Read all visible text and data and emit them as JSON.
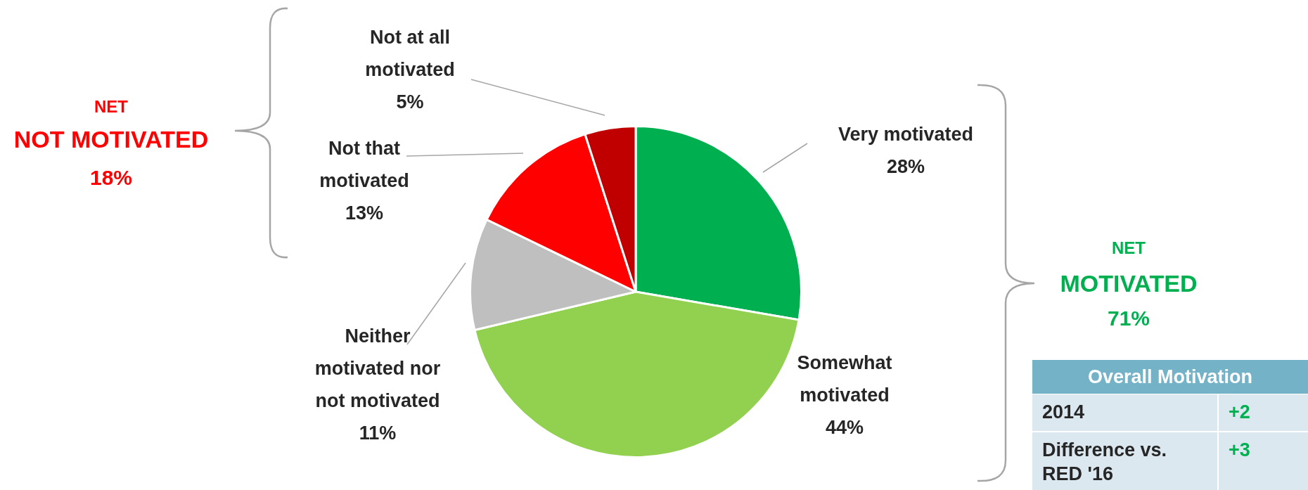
{
  "chart_data": {
    "type": "pie",
    "categories": [
      "Very motivated",
      "Somewhat motivated",
      "Neither motivated nor not motivated",
      "Not that motivated",
      "Not at all motivated"
    ],
    "values": [
      28,
      44,
      11,
      13,
      5
    ],
    "colors": [
      "#00b050",
      "#92d050",
      "#bfbfbf",
      "#ff0000",
      "#c00000"
    ],
    "value_labels": [
      "28%",
      "44%",
      "11%",
      "13%",
      "5%"
    ],
    "legend": false,
    "annotations": [
      "NET",
      "NOT MOTIVATED",
      "18%",
      "NET",
      "MOTIVATED",
      "71%",
      "Overall Motivation",
      "2014",
      "+2",
      "Difference vs. RED '16",
      "+3"
    ]
  }
}
